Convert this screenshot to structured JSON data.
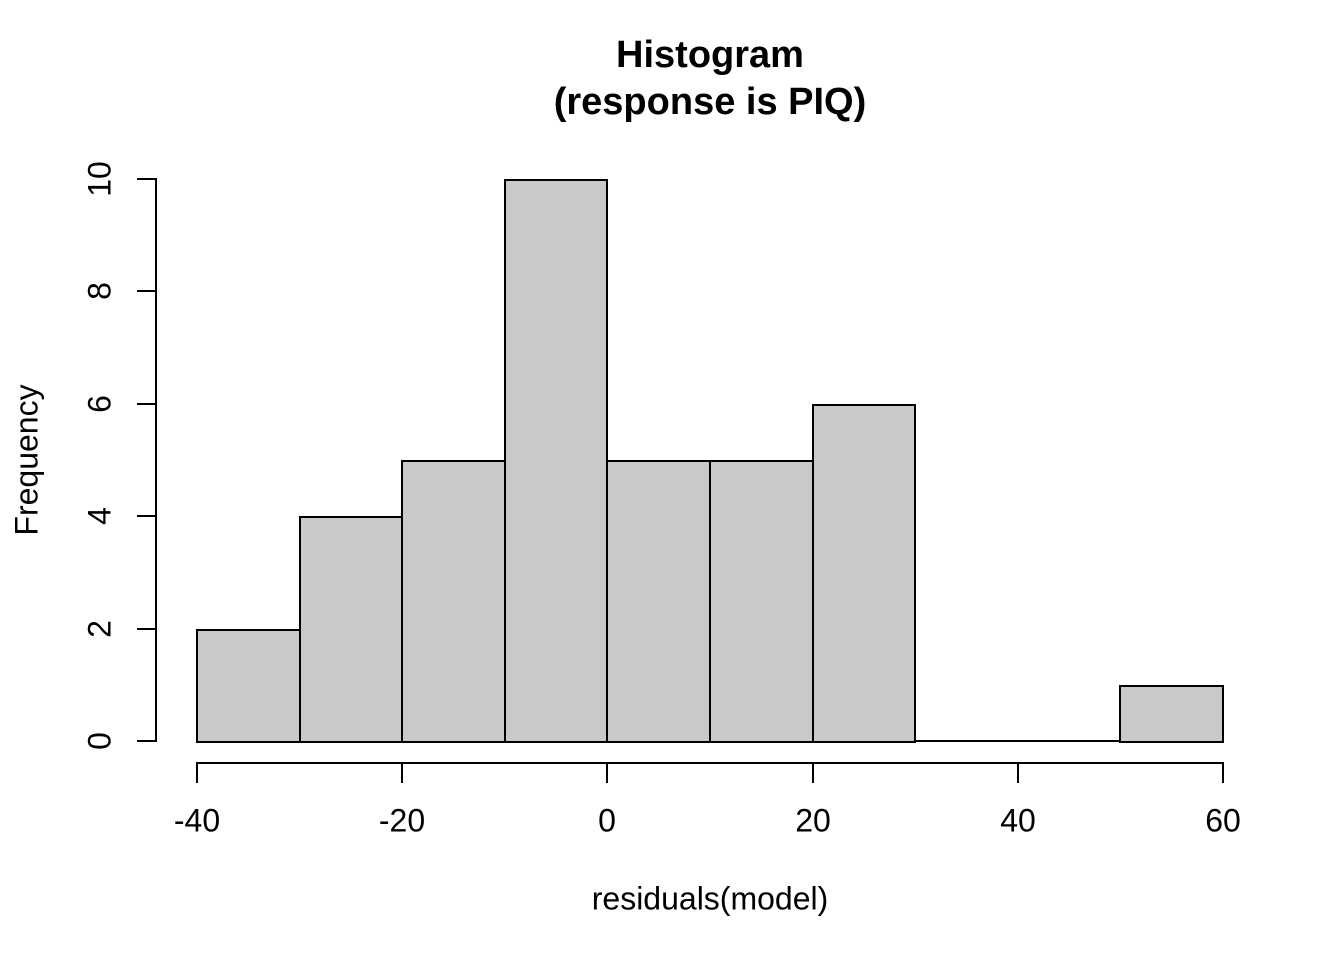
{
  "title": {
    "line1": "Histogram",
    "line2": "(response is PIQ)"
  },
  "colors": {
    "bar_fill": "#C9C9C9",
    "bar_border": "#000000",
    "axis": "#000000",
    "text": "#000000",
    "background": "#FFFFFF"
  },
  "chart_data": {
    "type": "bar",
    "subtype": "histogram",
    "title_lines": [
      "Histogram",
      "(response is PIQ)"
    ],
    "xlabel": "residuals(model)",
    "ylabel": "Frequency",
    "bin_edges": [
      -40,
      -30,
      -20,
      -10,
      0,
      10,
      20,
      30,
      40,
      50,
      60
    ],
    "counts": [
      2,
      4,
      5,
      10,
      5,
      5,
      6,
      0,
      0,
      1
    ],
    "xlim": [
      -40,
      60
    ],
    "ylim": [
      0,
      10
    ],
    "x_ticks": [
      -40,
      -20,
      0,
      20,
      40,
      60
    ],
    "y_ticks": [
      0,
      2,
      4,
      6,
      8,
      10
    ],
    "grid": false,
    "legend": false
  }
}
